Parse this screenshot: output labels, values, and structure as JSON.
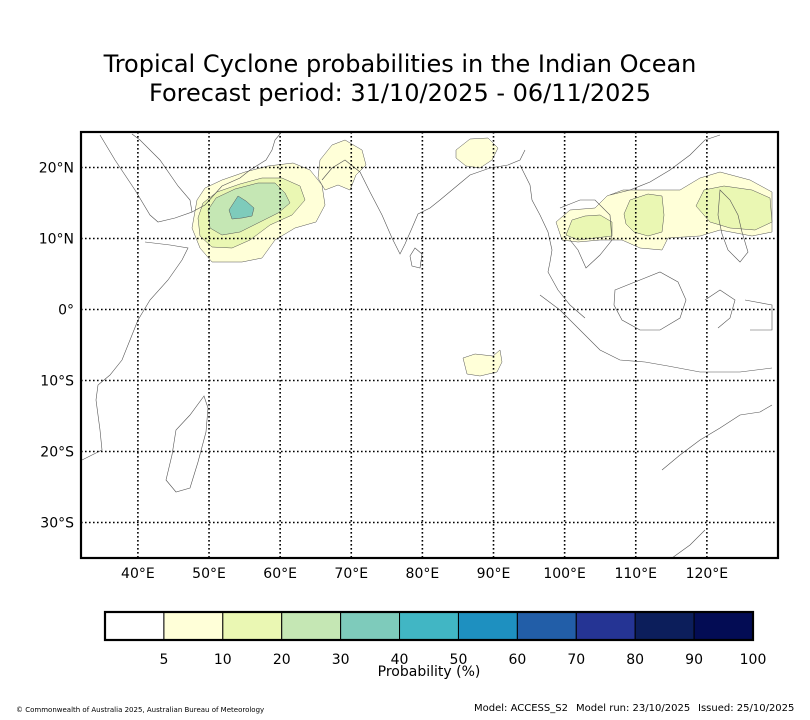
{
  "title": {
    "line1": "Tropical Cyclone probabilities in the Indian Ocean",
    "line2": "Forecast period: 31/10/2025 - 06/11/2025"
  },
  "map": {
    "lon_range": [
      32,
      130
    ],
    "lat_range": [
      -35,
      25
    ],
    "lon_ticks": [
      "40°E",
      "50°E",
      "60°E",
      "70°E",
      "80°E",
      "90°E",
      "100°E",
      "110°E",
      "120°E"
    ],
    "lon_tick_values": [
      40,
      50,
      60,
      70,
      80,
      90,
      100,
      110,
      120
    ],
    "lat_ticks": [
      "20°N",
      "10°N",
      "0°",
      "10°S",
      "20°S",
      "30°S"
    ],
    "lat_tick_values": [
      20,
      10,
      0,
      -10,
      -20,
      -30
    ],
    "grid": "dotted"
  },
  "colorbar": {
    "title": "Probability (%)",
    "tick_labels": [
      "5",
      "10",
      "20",
      "30",
      "40",
      "50",
      "60",
      "70",
      "80",
      "90",
      "100"
    ],
    "colors": [
      "#ffffff",
      "#ffffd8",
      "#eaf7b3",
      "#c5e7b4",
      "#7ecbbb",
      "#41b6c4",
      "#1e90c0",
      "#225ea8",
      "#253494",
      "#0c1e5b",
      "#030c54"
    ]
  },
  "footer": {
    "copyright": "© Commonwealth of Australia 2025, Australian Bureau of Meteorology",
    "model": "Model: ACCESS_S2",
    "model_run": "Model run: 23/10/2025",
    "issued": "Issued: 25/10/2025"
  }
}
